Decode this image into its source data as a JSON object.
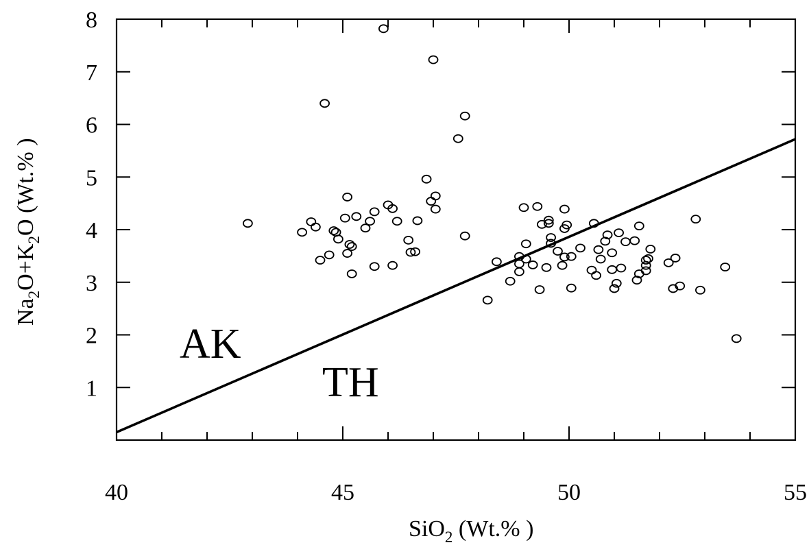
{
  "chart_data": {
    "type": "scatter",
    "xlim": [
      40,
      55
    ],
    "ylim": [
      0,
      8
    ],
    "x_major_ticks": [
      40,
      45,
      50,
      55
    ],
    "y_major_ticks": [
      1,
      2,
      3,
      4,
      5,
      6,
      7,
      8
    ],
    "x_tick_labels": [
      "40",
      "45",
      "50",
      "55"
    ],
    "y_tick_labels": [
      "1",
      "2",
      "3",
      "4",
      "5",
      "6",
      "7",
      "8"
    ],
    "xlabel": {
      "base": "SiO",
      "sub": "2",
      "rest": " (Wt.%  )"
    },
    "ylabel": {
      "a": "Na",
      "a_sub": "2",
      "b": "O+K",
      "b_sub": "2",
      "c": "O (Wt.%  )"
    },
    "divider_line": {
      "x": [
        40,
        55
      ],
      "y": [
        0.15,
        5.72
      ]
    },
    "region_labels": {
      "upper": "AK",
      "lower": "TH"
    },
    "grid": false,
    "marker": "open-circle",
    "points": [
      [
        42.9,
        4.12
      ],
      [
        44.1,
        3.95
      ],
      [
        44.3,
        4.15
      ],
      [
        44.4,
        4.05
      ],
      [
        44.5,
        3.42
      ],
      [
        44.6,
        6.4
      ],
      [
        44.7,
        3.52
      ],
      [
        44.8,
        3.98
      ],
      [
        44.85,
        3.95
      ],
      [
        44.9,
        3.82
      ],
      [
        45.05,
        4.22
      ],
      [
        45.1,
        3.55
      ],
      [
        45.1,
        4.62
      ],
      [
        45.15,
        3.72
      ],
      [
        45.2,
        3.68
      ],
      [
        45.2,
        3.16
      ],
      [
        45.3,
        4.25
      ],
      [
        45.5,
        4.03
      ],
      [
        45.6,
        4.16
      ],
      [
        45.7,
        3.3
      ],
      [
        45.7,
        4.34
      ],
      [
        45.9,
        7.82
      ],
      [
        46.0,
        4.47
      ],
      [
        46.1,
        4.4
      ],
      [
        46.1,
        3.32
      ],
      [
        46.2,
        4.16
      ],
      [
        46.45,
        3.8
      ],
      [
        46.5,
        3.57
      ],
      [
        46.6,
        3.58
      ],
      [
        46.65,
        4.17
      ],
      [
        46.85,
        4.96
      ],
      [
        46.95,
        4.54
      ],
      [
        47.0,
        7.23
      ],
      [
        47.05,
        4.64
      ],
      [
        47.05,
        4.39
      ],
      [
        47.55,
        5.73
      ],
      [
        47.7,
        6.16
      ],
      [
        47.7,
        3.88
      ],
      [
        48.2,
        2.66
      ],
      [
        48.4,
        3.39
      ],
      [
        48.7,
        3.02
      ],
      [
        48.9,
        3.49
      ],
      [
        48.9,
        3.35
      ],
      [
        48.9,
        3.2
      ],
      [
        49.0,
        4.42
      ],
      [
        49.05,
        3.44
      ],
      [
        49.05,
        3.73
      ],
      [
        49.2,
        3.33
      ],
      [
        49.3,
        4.44
      ],
      [
        49.35,
        2.86
      ],
      [
        49.4,
        4.1
      ],
      [
        49.5,
        3.28
      ],
      [
        49.55,
        4.12
      ],
      [
        49.55,
        4.18
      ],
      [
        49.6,
        3.85
      ],
      [
        49.6,
        3.74
      ],
      [
        49.75,
        3.59
      ],
      [
        49.85,
        3.32
      ],
      [
        49.9,
        4.39
      ],
      [
        49.9,
        4.02
      ],
      [
        49.9,
        3.48
      ],
      [
        49.95,
        4.09
      ],
      [
        50.05,
        3.49
      ],
      [
        50.05,
        2.89
      ],
      [
        50.25,
        3.65
      ],
      [
        50.5,
        3.23
      ],
      [
        50.55,
        4.12
      ],
      [
        50.6,
        3.13
      ],
      [
        50.65,
        3.62
      ],
      [
        50.7,
        3.44
      ],
      [
        50.8,
        3.78
      ],
      [
        50.85,
        3.9
      ],
      [
        50.95,
        3.56
      ],
      [
        50.95,
        3.24
      ],
      [
        51.0,
        2.88
      ],
      [
        51.05,
        2.98
      ],
      [
        51.1,
        3.94
      ],
      [
        51.15,
        3.27
      ],
      [
        51.25,
        3.77
      ],
      [
        51.45,
        3.79
      ],
      [
        51.5,
        3.04
      ],
      [
        51.55,
        3.16
      ],
      [
        51.55,
        4.07
      ],
      [
        51.7,
        3.32
      ],
      [
        51.7,
        3.42
      ],
      [
        51.7,
        3.22
      ],
      [
        51.75,
        3.45
      ],
      [
        51.8,
        3.63
      ],
      [
        52.2,
        3.37
      ],
      [
        52.3,
        2.88
      ],
      [
        52.35,
        3.46
      ],
      [
        52.45,
        2.93
      ],
      [
        52.8,
        4.2
      ],
      [
        52.9,
        2.85
      ],
      [
        53.45,
        3.29
      ],
      [
        53.7,
        1.93
      ]
    ]
  }
}
